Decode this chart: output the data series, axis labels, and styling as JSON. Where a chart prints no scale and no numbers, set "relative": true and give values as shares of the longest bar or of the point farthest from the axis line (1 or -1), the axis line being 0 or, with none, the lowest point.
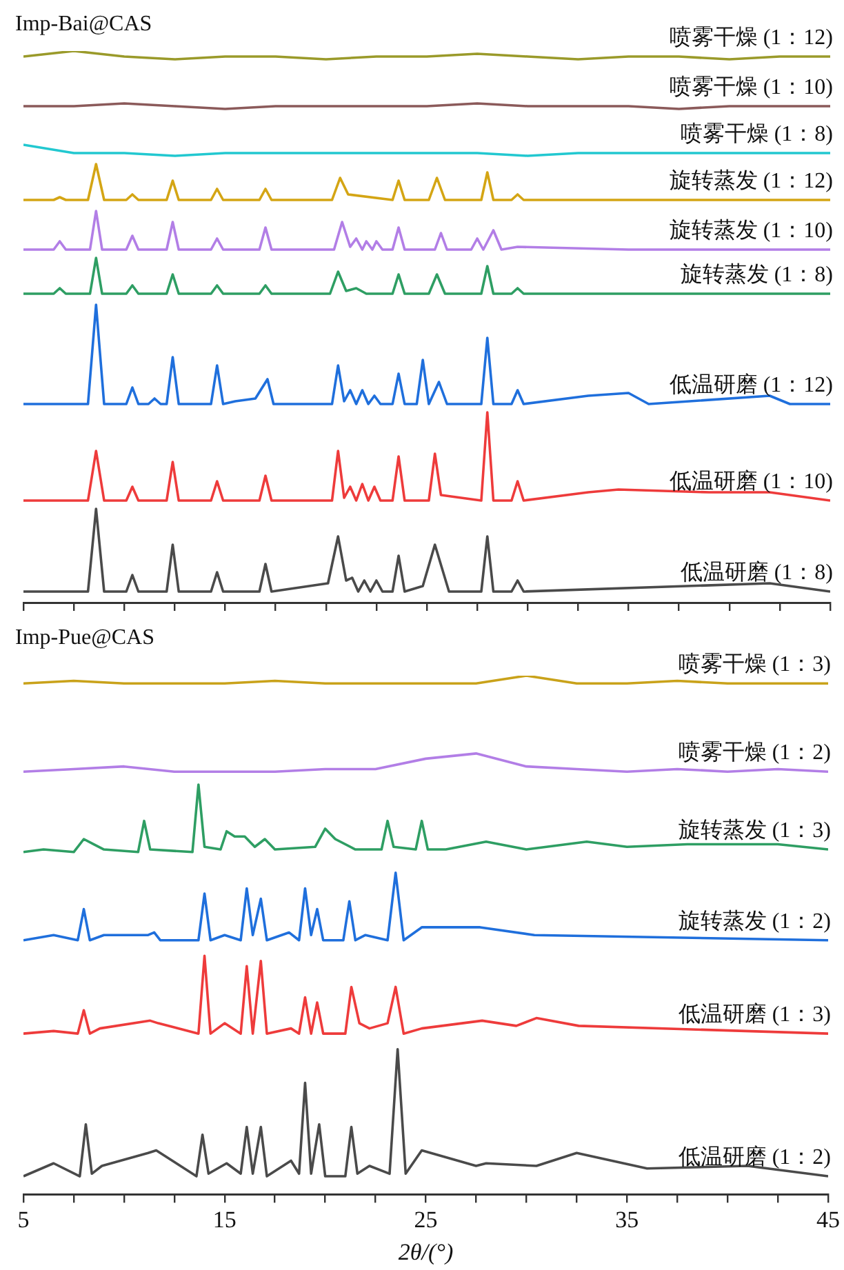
{
  "chart_data": [
    {
      "type": "line",
      "relative": true,
      "annotations": [
        "Imp-Bai@CAS"
      ],
      "xlim": [
        5,
        45
      ],
      "xticks": [
        5,
        {
          "value": 7.5,
          "label": null
        },
        {
          "value": 10,
          "label": null
        },
        {
          "value": 12.5,
          "label": null
        },
        {
          "value": 15,
          "label": null
        },
        {
          "value": 17.5,
          "label": null
        },
        {
          "value": 20,
          "label": null
        },
        {
          "value": 22.5,
          "label": null
        },
        {
          "value": 25,
          "label": null
        },
        {
          "value": 27.5,
          "label": null
        },
        {
          "value": 30,
          "label": null
        },
        {
          "value": 32.5,
          "label": null
        },
        {
          "value": 35,
          "label": null
        },
        {
          "value": 37.5,
          "label": null
        },
        {
          "value": 40,
          "label": null
        },
        {
          "value": 42.5,
          "label": null
        },
        {
          "value": 45,
          "label": null
        }
      ],
      "tick_labels": false,
      "series": [
        {
          "name": "喷雾干燥 (1：12)",
          "color": "#9a9a2a",
          "x": [
            5,
            7.5,
            10,
            12.5,
            15,
            17.5,
            20,
            22.5,
            25,
            27.5,
            30,
            32.5,
            35,
            37.5,
            40,
            42.5,
            45
          ],
          "values": [
            0.99,
            1,
            0.99,
            0.985,
            0.99,
            0.99,
            0.985,
            0.99,
            0.99,
            0.995,
            0.99,
            0.985,
            0.99,
            0.99,
            0.985,
            0.99,
            0.99
          ]
        },
        {
          "name": "喷雾干燥 (1：10)",
          "color": "#8b5a5a",
          "x": [
            5,
            7.5,
            10,
            12.5,
            15,
            17.5,
            20,
            22.5,
            25,
            27.5,
            30,
            32.5,
            35,
            37.5,
            40,
            42.5,
            45
          ],
          "values": [
            0.9,
            0.9,
            0.905,
            0.9,
            0.895,
            0.9,
            0.9,
            0.9,
            0.9,
            0.905,
            0.9,
            0.9,
            0.9,
            0.895,
            0.9,
            0.9,
            0.9
          ]
        },
        {
          "name": "喷雾干燥 (1：8)",
          "color": "#22c8d0",
          "x": [
            5,
            7.5,
            10,
            12.5,
            15,
            17.5,
            20,
            22.5,
            25,
            27.5,
            30,
            32.5,
            35,
            37.5,
            40,
            42.5,
            45
          ],
          "values": [
            0.83,
            0.815,
            0.815,
            0.81,
            0.815,
            0.815,
            0.815,
            0.815,
            0.815,
            0.815,
            0.81,
            0.815,
            0.815,
            0.815,
            0.815,
            0.815,
            0.815
          ]
        },
        {
          "name": "旋转蒸发 (1：12)",
          "color": "#d4a514",
          "x": [
            5,
            6.5,
            6.8,
            7.1,
            8.2,
            8.6,
            9,
            10.1,
            10.4,
            10.7,
            12.1,
            12.4,
            12.7,
            14.3,
            14.6,
            14.9,
            16.7,
            17,
            17.3,
            20.3,
            20.7,
            21.1,
            23.3,
            23.6,
            23.9,
            25.1,
            25.5,
            25.9,
            27.7,
            28,
            28.3,
            29.2,
            29.5,
            29.8,
            35,
            45
          ],
          "values": [
            0.73,
            0.73,
            0.735,
            0.73,
            0.73,
            0.795,
            0.73,
            0.73,
            0.74,
            0.73,
            0.73,
            0.765,
            0.73,
            0.73,
            0.75,
            0.73,
            0.73,
            0.75,
            0.73,
            0.73,
            0.77,
            0.74,
            0.73,
            0.765,
            0.73,
            0.73,
            0.77,
            0.73,
            0.73,
            0.78,
            0.73,
            0.73,
            0.74,
            0.73,
            0.73,
            0.73
          ]
        },
        {
          "name": "旋转蒸发 (1：10)",
          "color": "#b27ee6",
          "x": [
            5,
            6.5,
            6.8,
            7.1,
            8.3,
            8.6,
            8.9,
            10.1,
            10.4,
            10.7,
            12.1,
            12.4,
            12.7,
            14.3,
            14.6,
            14.9,
            16.7,
            17,
            17.3,
            20.4,
            20.8,
            21.2,
            21.5,
            21.8,
            22,
            22.3,
            22.5,
            22.8,
            23.3,
            23.6,
            23.9,
            25.4,
            25.7,
            26,
            27.2,
            27.5,
            27.8,
            28.3,
            28.7,
            29.5,
            35,
            45
          ],
          "values": [
            0.64,
            0.64,
            0.655,
            0.64,
            0.64,
            0.71,
            0.64,
            0.64,
            0.665,
            0.64,
            0.64,
            0.69,
            0.64,
            0.64,
            0.66,
            0.64,
            0.64,
            0.68,
            0.64,
            0.64,
            0.69,
            0.645,
            0.66,
            0.64,
            0.655,
            0.64,
            0.655,
            0.64,
            0.64,
            0.68,
            0.64,
            0.64,
            0.67,
            0.64,
            0.64,
            0.66,
            0.64,
            0.675,
            0.64,
            0.645,
            0.64,
            0.64
          ]
        },
        {
          "name": "旋转蒸发 (1：8)",
          "color": "#2e9e63",
          "x": [
            5,
            6.5,
            6.8,
            7.1,
            8.3,
            8.6,
            8.9,
            10.1,
            10.4,
            10.7,
            12.1,
            12.4,
            12.7,
            14.3,
            14.6,
            14.9,
            16.7,
            17,
            17.3,
            20.2,
            20.6,
            21,
            21.5,
            22,
            23.3,
            23.6,
            23.9,
            25.1,
            25.5,
            25.9,
            27.7,
            28,
            28.3,
            29.2,
            29.5,
            29.8,
            45
          ],
          "values": [
            0.56,
            0.56,
            0.57,
            0.56,
            0.56,
            0.625,
            0.56,
            0.56,
            0.575,
            0.56,
            0.56,
            0.595,
            0.56,
            0.56,
            0.575,
            0.56,
            0.56,
            0.575,
            0.56,
            0.56,
            0.6,
            0.565,
            0.57,
            0.56,
            0.56,
            0.595,
            0.56,
            0.56,
            0.595,
            0.56,
            0.56,
            0.61,
            0.56,
            0.56,
            0.57,
            0.56,
            0.56
          ]
        },
        {
          "name": "低温研磨 (1：12)",
          "color": "#1f6fdc",
          "x": [
            5,
            8.2,
            8.6,
            9,
            10.1,
            10.4,
            10.7,
            11.2,
            11.5,
            11.8,
            12.1,
            12.4,
            12.7,
            14.3,
            14.6,
            14.9,
            15.5,
            16.5,
            17.1,
            17.4,
            20.3,
            20.6,
            20.9,
            21.2,
            21.5,
            21.8,
            22.1,
            22.4,
            22.7,
            23.3,
            23.6,
            23.9,
            24.5,
            24.8,
            25.1,
            25.6,
            26,
            27.7,
            28,
            28.3,
            29.2,
            29.5,
            29.8,
            33,
            35,
            36,
            42,
            43,
            45
          ],
          "values": [
            0.36,
            0.36,
            0.54,
            0.36,
            0.36,
            0.39,
            0.36,
            0.36,
            0.37,
            0.36,
            0.36,
            0.445,
            0.36,
            0.36,
            0.43,
            0.36,
            0.365,
            0.37,
            0.405,
            0.36,
            0.36,
            0.43,
            0.365,
            0.385,
            0.36,
            0.385,
            0.36,
            0.375,
            0.36,
            0.36,
            0.415,
            0.36,
            0.36,
            0.44,
            0.36,
            0.4,
            0.36,
            0.36,
            0.48,
            0.36,
            0.36,
            0.385,
            0.36,
            0.375,
            0.38,
            0.36,
            0.375,
            0.36,
            0.36
          ]
        },
        {
          "name": "低温研磨 (1：10)",
          "color": "#ee3b3b",
          "x": [
            5,
            8.2,
            8.6,
            9,
            10.1,
            10.4,
            10.7,
            12.1,
            12.4,
            12.7,
            14.3,
            14.6,
            14.9,
            16.7,
            17,
            17.3,
            20.3,
            20.6,
            20.9,
            21.2,
            21.5,
            21.8,
            22.1,
            22.4,
            22.7,
            23.3,
            23.6,
            23.9,
            25.1,
            25.4,
            25.7,
            27.7,
            28,
            28.3,
            29.2,
            29.5,
            29.8,
            33,
            34.5,
            39,
            42,
            45
          ],
          "values": [
            0.185,
            0.185,
            0.275,
            0.185,
            0.185,
            0.21,
            0.185,
            0.185,
            0.255,
            0.185,
            0.185,
            0.22,
            0.185,
            0.185,
            0.23,
            0.185,
            0.185,
            0.275,
            0.19,
            0.21,
            0.185,
            0.215,
            0.185,
            0.21,
            0.185,
            0.185,
            0.265,
            0.185,
            0.185,
            0.27,
            0.195,
            0.185,
            0.345,
            0.185,
            0.185,
            0.22,
            0.185,
            0.2,
            0.205,
            0.2,
            0.2,
            0.185
          ]
        },
        {
          "name": "低温研磨 (1：8)",
          "color": "#4a4a4a",
          "x": [
            5,
            8.2,
            8.6,
            9,
            10.1,
            10.4,
            10.7,
            12.1,
            12.4,
            12.7,
            14.3,
            14.6,
            14.9,
            16.7,
            17,
            17.3,
            20.1,
            20.6,
            21,
            21.3,
            21.6,
            21.9,
            22.2,
            22.5,
            22.8,
            23.3,
            23.6,
            23.9,
            24.8,
            25.4,
            26.1,
            27.7,
            28,
            28.3,
            29.2,
            29.5,
            29.8,
            42,
            45
          ],
          "values": [
            0.02,
            0.02,
            0.17,
            0.02,
            0.02,
            0.05,
            0.02,
            0.02,
            0.105,
            0.02,
            0.02,
            0.055,
            0.02,
            0.02,
            0.07,
            0.02,
            0.035,
            0.12,
            0.04,
            0.045,
            0.02,
            0.04,
            0.02,
            0.04,
            0.02,
            0.02,
            0.085,
            0.02,
            0.03,
            0.105,
            0.02,
            0.02,
            0.12,
            0.02,
            0.02,
            0.04,
            0.02,
            0.035,
            0.02
          ]
        }
      ]
    },
    {
      "type": "line",
      "relative": true,
      "annotations": [
        "Imp-Pue@CAS"
      ],
      "xlabel": "2θ/(°)",
      "xlim": [
        5,
        45
      ],
      "xticks": [
        5,
        {
          "value": 7.5,
          "label": null
        },
        {
          "value": 10,
          "label": null
        },
        {
          "value": 12.5,
          "label": null
        },
        15,
        {
          "value": 17.5,
          "label": null
        },
        {
          "value": 20,
          "label": null
        },
        {
          "value": 22.5,
          "label": null
        },
        25,
        {
          "value": 27.5,
          "label": null
        },
        {
          "value": 30,
          "label": null
        },
        {
          "value": 32.5,
          "label": null
        },
        35,
        {
          "value": 37.5,
          "label": null
        },
        {
          "value": 40,
          "label": null
        },
        {
          "value": 42.5,
          "label": null
        },
        45
      ],
      "tick_labels": "x",
      "series": [
        {
          "name": "喷雾干燥 (1：3)",
          "color": "#c9a21a",
          "x": [
            5,
            7.5,
            10,
            12.5,
            15,
            17.5,
            20,
            22.5,
            25,
            27.5,
            30,
            32.5,
            35,
            37.5,
            40,
            42.5,
            45
          ],
          "values": [
            0.985,
            0.99,
            0.985,
            0.985,
            0.985,
            0.99,
            0.985,
            0.985,
            0.985,
            0.985,
            1,
            0.985,
            0.985,
            0.99,
            0.985,
            0.985,
            0.985
          ]
        },
        {
          "name": "喷雾干燥 (1：2)",
          "color": "#b27ee6",
          "x": [
            5,
            7.5,
            10,
            12.5,
            15,
            17.5,
            20,
            22.5,
            25,
            27.5,
            30,
            32.5,
            35,
            37.5,
            40,
            42.5,
            45
          ],
          "values": [
            0.815,
            0.82,
            0.825,
            0.815,
            0.815,
            0.815,
            0.82,
            0.82,
            0.84,
            0.85,
            0.825,
            0.82,
            0.815,
            0.82,
            0.815,
            0.82,
            0.815
          ]
        },
        {
          "name": "旋转蒸发 (1：3)",
          "color": "#2e9e63",
          "x": [
            5,
            6,
            7.5,
            8,
            8.5,
            9,
            10.7,
            11,
            11.3,
            13.4,
            13.7,
            14,
            14.8,
            15.1,
            15.5,
            16,
            16.5,
            17,
            17.5,
            19.5,
            20,
            20.5,
            21.5,
            22.8,
            23.1,
            23.4,
            24.5,
            24.8,
            25.1,
            26,
            28,
            30,
            33,
            35,
            38,
            42.5,
            45
          ],
          "values": [
            0.66,
            0.665,
            0.66,
            0.685,
            0.675,
            0.665,
            0.66,
            0.72,
            0.665,
            0.66,
            0.79,
            0.67,
            0.665,
            0.7,
            0.69,
            0.69,
            0.67,
            0.685,
            0.665,
            0.67,
            0.705,
            0.685,
            0.665,
            0.665,
            0.72,
            0.67,
            0.665,
            0.72,
            0.665,
            0.665,
            0.68,
            0.665,
            0.68,
            0.67,
            0.675,
            0.675,
            0.665
          ]
        },
        {
          "name": "旋转蒸发 (1：2)",
          "color": "#1f6fdc",
          "x": [
            5,
            6.5,
            7.7,
            8,
            8.3,
            9,
            11.2,
            11.5,
            11.8,
            13.7,
            14,
            14.3,
            15,
            15.8,
            16.1,
            16.4,
            16.8,
            17.1,
            18.2,
            18.7,
            19,
            19.3,
            19.6,
            19.9,
            20.9,
            21.2,
            21.5,
            22,
            23.1,
            23.5,
            23.9,
            24.8,
            27.7,
            30.4,
            45
          ],
          "values": [
            0.49,
            0.5,
            0.49,
            0.55,
            0.49,
            0.5,
            0.5,
            0.505,
            0.49,
            0.49,
            0.58,
            0.49,
            0.5,
            0.49,
            0.59,
            0.5,
            0.57,
            0.49,
            0.505,
            0.49,
            0.59,
            0.5,
            0.55,
            0.49,
            0.49,
            0.565,
            0.49,
            0.5,
            0.49,
            0.62,
            0.49,
            0.515,
            0.515,
            0.5,
            0.49
          ]
        },
        {
          "name": "低温研磨 (1：3)",
          "color": "#ee3b3b",
          "x": [
            5,
            6.5,
            7.7,
            8,
            8.3,
            8.8,
            11.3,
            11.7,
            13.7,
            14,
            14.3,
            15,
            15.8,
            16.1,
            16.4,
            16.8,
            17.1,
            18.3,
            18.7,
            19,
            19.3,
            19.6,
            19.9,
            21,
            21.3,
            21.7,
            22.2,
            23.1,
            23.5,
            23.9,
            24.8,
            27.8,
            29.5,
            30.5,
            32.6,
            45
          ],
          "values": [
            0.31,
            0.315,
            0.31,
            0.355,
            0.31,
            0.32,
            0.335,
            0.33,
            0.31,
            0.46,
            0.31,
            0.33,
            0.31,
            0.44,
            0.31,
            0.45,
            0.31,
            0.32,
            0.31,
            0.38,
            0.31,
            0.37,
            0.31,
            0.31,
            0.4,
            0.33,
            0.32,
            0.33,
            0.4,
            0.31,
            0.32,
            0.335,
            0.325,
            0.34,
            0.325,
            0.31
          ]
        },
        {
          "name": "低温研磨 (1：2)",
          "color": "#4a4a4a",
          "x": [
            5,
            6.5,
            7.8,
            8.1,
            8.4,
            8.9,
            11.2,
            11.6,
            13.6,
            13.9,
            14.2,
            15.1,
            15.8,
            16.1,
            16.4,
            16.8,
            17.1,
            18.3,
            18.7,
            19,
            19.3,
            19.7,
            20,
            21,
            21.3,
            21.6,
            22.2,
            23.2,
            23.6,
            24,
            24.8,
            27.5,
            28,
            30.5,
            32.5,
            36,
            41,
            45
          ],
          "values": [
            0.035,
            0.06,
            0.035,
            0.135,
            0.04,
            0.055,
            0.08,
            0.085,
            0.035,
            0.115,
            0.04,
            0.06,
            0.04,
            0.13,
            0.04,
            0.13,
            0.035,
            0.065,
            0.04,
            0.215,
            0.04,
            0.135,
            0.035,
            0.035,
            0.13,
            0.04,
            0.055,
            0.04,
            0.28,
            0.04,
            0.085,
            0.055,
            0.06,
            0.055,
            0.08,
            0.05,
            0.055,
            0.035
          ]
        }
      ]
    }
  ]
}
